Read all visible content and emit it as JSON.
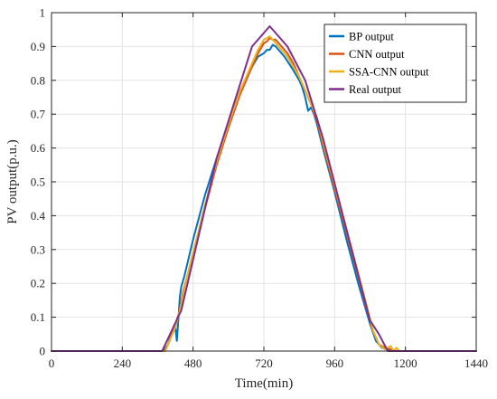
{
  "chart_data": {
    "type": "line",
    "title": "",
    "xlabel": "Time(min)",
    "ylabel": "PV output(p.u.)",
    "xlim": [
      0,
      1440
    ],
    "ylim": [
      0,
      1
    ],
    "xticks": [
      0,
      240,
      480,
      720,
      960,
      1200,
      1440
    ],
    "yticks": [
      0,
      0.1,
      0.2,
      0.3,
      0.4,
      0.5,
      0.6,
      0.7,
      0.8,
      0.9,
      1
    ],
    "ytick_labels": [
      "0",
      "0.1",
      "0.2",
      "0.3",
      "0.4",
      "0.5",
      "0.6",
      "0.7",
      "0.8",
      "0.9",
      "1"
    ],
    "grid": true,
    "legend_position": "top-right",
    "series": [
      {
        "name": "BP output",
        "color": "#0072BD",
        "x": [
          0,
          380,
          395,
          410,
          420,
          425,
          430,
          435,
          440,
          450,
          480,
          520,
          560,
          600,
          640,
          680,
          700,
          720,
          730,
          740,
          750,
          760,
          770,
          790,
          820,
          840,
          850,
          860,
          870,
          880,
          890,
          900,
          920,
          960,
          1000,
          1040,
          1080,
          1100,
          1120,
          1140,
          1160,
          1440
        ],
        "y": [
          0,
          0,
          0.02,
          0.06,
          0.07,
          0.03,
          0.09,
          0.16,
          0.19,
          0.22,
          0.33,
          0.46,
          0.57,
          0.67,
          0.77,
          0.84,
          0.87,
          0.88,
          0.89,
          0.89,
          0.905,
          0.9,
          0.89,
          0.87,
          0.83,
          0.8,
          0.78,
          0.75,
          0.71,
          0.72,
          0.7,
          0.67,
          0.6,
          0.47,
          0.33,
          0.2,
          0.08,
          0.03,
          0.01,
          0.005,
          0,
          0
        ]
      },
      {
        "name": "CNN output",
        "color": "#D95319",
        "x": [
          0,
          385,
          400,
          420,
          435,
          445,
          460,
          480,
          520,
          560,
          600,
          640,
          680,
          700,
          720,
          730,
          740,
          750,
          760,
          780,
          800,
          820,
          840,
          860,
          880,
          900,
          920,
          960,
          1000,
          1040,
          1070,
          1090,
          1110,
          1130,
          1150,
          1170,
          1440
        ],
        "y": [
          0,
          0,
          0.03,
          0.08,
          0.12,
          0.17,
          0.22,
          0.29,
          0.42,
          0.55,
          0.66,
          0.76,
          0.84,
          0.88,
          0.91,
          0.915,
          0.925,
          0.92,
          0.92,
          0.9,
          0.88,
          0.85,
          0.81,
          0.77,
          0.73,
          0.68,
          0.61,
          0.48,
          0.35,
          0.22,
          0.12,
          0.06,
          0.02,
          0.01,
          0.005,
          0,
          0
        ]
      },
      {
        "name": "SSA-CNN output",
        "color": "#EDB120",
        "x": [
          0,
          385,
          400,
          420,
          435,
          445,
          460,
          480,
          520,
          560,
          600,
          640,
          680,
          700,
          720,
          730,
          740,
          750,
          760,
          780,
          800,
          820,
          840,
          860,
          880,
          900,
          920,
          960,
          1000,
          1040,
          1070,
          1090,
          1110,
          1130,
          1150,
          1160,
          1170,
          1180,
          1200,
          1440
        ],
        "y": [
          0,
          0,
          0.03,
          0.07,
          0.12,
          0.16,
          0.22,
          0.29,
          0.43,
          0.56,
          0.67,
          0.77,
          0.85,
          0.89,
          0.92,
          0.925,
          0.93,
          0.92,
          0.91,
          0.89,
          0.87,
          0.84,
          0.81,
          0.77,
          0.73,
          0.69,
          0.62,
          0.49,
          0.36,
          0.23,
          0.13,
          0.06,
          0.02,
          0.005,
          0.015,
          0,
          0.01,
          0,
          0,
          0
        ]
      },
      {
        "name": "Real output",
        "color": "#7E2F8E",
        "x": [
          0,
          375,
          440,
          560,
          680,
          740,
          800,
          860,
          920,
          1000,
          1080,
          1110,
          1140,
          1440
        ],
        "y": [
          0,
          0,
          0.12,
          0.57,
          0.9,
          0.96,
          0.9,
          0.8,
          0.63,
          0.36,
          0.09,
          0.05,
          0,
          0
        ]
      }
    ]
  }
}
